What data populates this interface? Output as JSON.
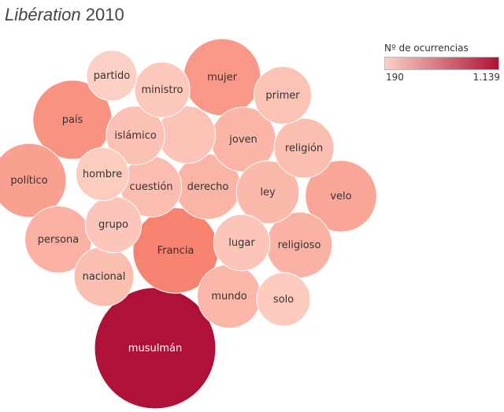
{
  "header": {
    "publication": "Libération",
    "year": "2010"
  },
  "legend": {
    "title": "Nº de ocurrencias",
    "min_label": "190",
    "max_label": "1.139",
    "color_min": "#fcd0c4",
    "color_max": "#b01237"
  },
  "chart_data": {
    "type": "bubble",
    "title": "Libération 2010",
    "value_range": [
      190,
      1139
    ],
    "bubbles": [
      {
        "label": "musulmán",
        "value": 1139
      },
      {
        "label": "Francia",
        "value": 560
      },
      {
        "label": "país",
        "value": 480
      },
      {
        "label": "mujer",
        "value": 455
      },
      {
        "label": "político",
        "value": 420
      },
      {
        "label": "velo",
        "value": 390
      },
      {
        "label": "persona",
        "value": 340
      },
      {
        "label": "religioso",
        "value": 330
      },
      {
        "label": "derecho",
        "value": 325
      },
      {
        "label": "joven",
        "value": 320
      },
      {
        "label": "mundo",
        "value": 310
      },
      {
        "label": "ley",
        "value": 300
      },
      {
        "label": "",
        "value": 250
      },
      {
        "label": "cuestión",
        "value": 280
      },
      {
        "label": "religión",
        "value": 270
      },
      {
        "label": "nacional",
        "value": 270
      },
      {
        "label": "islámico",
        "value": 260
      },
      {
        "label": "primer",
        "value": 250
      },
      {
        "label": "grupo",
        "value": 240
      },
      {
        "label": "lugar",
        "value": 240
      },
      {
        "label": "ministro",
        "value": 230
      },
      {
        "label": "solo",
        "value": 215
      },
      {
        "label": "hombre",
        "value": 210
      },
      {
        "label": "partido",
        "value": 190
      }
    ]
  }
}
